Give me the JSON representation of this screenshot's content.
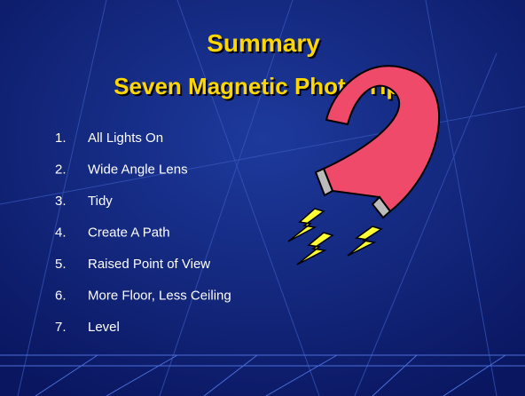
{
  "slide": {
    "title": "Summary",
    "subtitle": "Seven Magnetic Photo Tips",
    "items": [
      {
        "number": "1.",
        "text": "All Lights On"
      },
      {
        "number": "2.",
        "text": "Wide Angle Lens"
      },
      {
        "number": "3.",
        "text": "Tidy"
      },
      {
        "number": "4.",
        "text": "Create A Path"
      },
      {
        "number": "5.",
        "text": "Raised Point of View"
      },
      {
        "number": "6.",
        "text": "More Floor, Less Ceiling"
      },
      {
        "number": "7.",
        "text": "Level"
      }
    ]
  }
}
